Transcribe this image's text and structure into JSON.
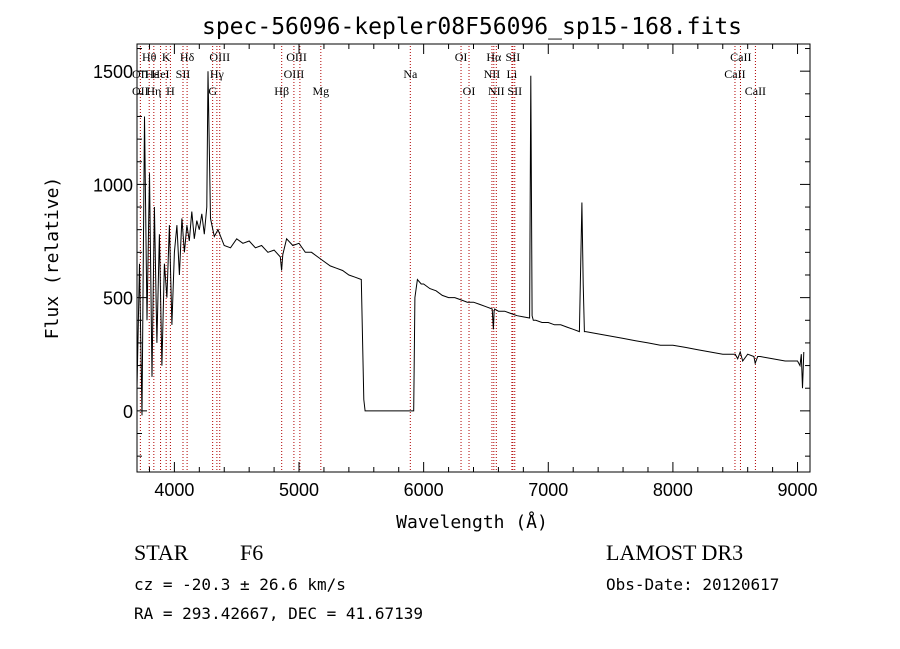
{
  "chart_data": {
    "type": "line",
    "title": "spec-56096-kepler08F56096_sp15-168.fits",
    "xlabel": "Wavelength (Å)",
    "ylabel": "Flux (relative)",
    "xlim": [
      3700,
      9100
    ],
    "ylim": [
      -270,
      1620
    ],
    "xticks": [
      4000,
      5000,
      6000,
      7000,
      8000,
      9000
    ],
    "yticks": [
      0,
      500,
      1000,
      1500
    ],
    "xtick_labels": [
      "4000",
      "5000",
      "6000",
      "7000",
      "8000",
      "9000"
    ],
    "ytick_labels": [
      "0",
      "500",
      "1000",
      "1500"
    ],
    "series": [
      {
        "name": "spectrum",
        "x": [
          3700,
          3720,
          3740,
          3760,
          3780,
          3800,
          3820,
          3840,
          3860,
          3880,
          3900,
          3920,
          3940,
          3960,
          3980,
          4000,
          4020,
          4040,
          4060,
          4080,
          4100,
          4120,
          4140,
          4160,
          4180,
          4200,
          4220,
          4240,
          4260,
          4270,
          4290,
          4320,
          4350,
          4400,
          4450,
          4500,
          4550,
          4600,
          4650,
          4700,
          4750,
          4800,
          4850,
          4860,
          4870,
          4900,
          4950,
          5000,
          5050,
          5100,
          5150,
          5200,
          5250,
          5300,
          5350,
          5400,
          5450,
          5500,
          5520,
          5530,
          5550,
          5600,
          5700,
          5800,
          5900,
          5920,
          5930,
          5950,
          5980,
          6000,
          6050,
          6100,
          6150,
          6200,
          6250,
          6300,
          6350,
          6400,
          6450,
          6500,
          6550,
          6560,
          6565,
          6570,
          6600,
          6650,
          6700,
          6750,
          6800,
          6850,
          6860,
          6870,
          6880,
          6900,
          6950,
          7000,
          7050,
          7100,
          7150,
          7200,
          7250,
          7270,
          7280,
          7290,
          7300,
          7350,
          7400,
          7500,
          7600,
          7700,
          7800,
          7900,
          8000,
          8100,
          8200,
          8300,
          8400,
          8500,
          8520,
          8540,
          8560,
          8600,
          8650,
          8660,
          8680,
          8700,
          8800,
          8900,
          9000,
          9020,
          9030,
          9040,
          9050
        ],
        "y": [
          100,
          650,
          -20,
          1300,
          400,
          1050,
          150,
          900,
          300,
          780,
          200,
          650,
          500,
          820,
          380,
          700,
          820,
          600,
          850,
          700,
          820,
          750,
          880,
          760,
          840,
          800,
          870,
          780,
          900,
          1500,
          850,
          770,
          800,
          730,
          720,
          760,
          740,
          750,
          720,
          730,
          700,
          710,
          680,
          620,
          690,
          760,
          730,
          740,
          700,
          700,
          680,
          660,
          640,
          630,
          620,
          600,
          590,
          580,
          50,
          0,
          0,
          0,
          0,
          0,
          0,
          0,
          500,
          580,
          560,
          560,
          540,
          530,
          510,
          500,
          500,
          490,
          480,
          480,
          470,
          460,
          450,
          360,
          440,
          450,
          440,
          440,
          430,
          420,
          415,
          410,
          1480,
          420,
          400,
          400,
          390,
          390,
          380,
          380,
          370,
          360,
          350,
          920,
          560,
          350,
          350,
          345,
          340,
          330,
          320,
          310,
          300,
          290,
          290,
          280,
          270,
          260,
          250,
          250,
          230,
          260,
          220,
          250,
          240,
          210,
          240,
          240,
          230,
          220,
          220,
          200,
          250,
          100,
          260
        ]
      }
    ],
    "line_labels": [
      {
        "text": "Hθ",
        "row": 1,
        "x": 3798,
        "lines": [
          3798
        ]
      },
      {
        "text": "K",
        "row": 1,
        "x": 3934,
        "lines": [
          3934
        ]
      },
      {
        "text": "Hδ",
        "row": 1,
        "x": 4102,
        "lines": [
          4102
        ]
      },
      {
        "text": "OIII",
        "row": 1,
        "x": 4364,
        "lines": [
          4364
        ]
      },
      {
        "text": "OIII",
        "row": 1,
        "x": 4980,
        "lines": [
          4959
        ]
      },
      {
        "text": "OI",
        "row": 1,
        "x": 6300,
        "lines": [
          6300
        ]
      },
      {
        "text": "Hα",
        "row": 1,
        "x": 6563,
        "lines": [
          6563
        ]
      },
      {
        "text": "SII",
        "row": 1,
        "x": 6716,
        "lines": [
          6716
        ]
      },
      {
        "text": "CaII",
        "row": 1,
        "x": 8545,
        "lines": [
          8542
        ]
      },
      {
        "text": "OII",
        "row": 2,
        "x": 3727,
        "lines": [
          3727
        ]
      },
      {
        "text": "Hε",
        "row": 2,
        "x": 3820,
        "lines": [
          3835
        ]
      },
      {
        "text": "HeI",
        "row": 2,
        "x": 3889,
        "lines": [
          3889
        ]
      },
      {
        "text": "SII",
        "row": 2,
        "x": 4069,
        "lines": [
          4069
        ]
      },
      {
        "text": "Hγ",
        "row": 2,
        "x": 4341,
        "lines": [
          4341
        ]
      },
      {
        "text": "OIII",
        "row": 2,
        "x": 4959,
        "lines": [
          5007
        ]
      },
      {
        "text": "Na",
        "row": 2,
        "x": 5893,
        "lines": [
          5893
        ]
      },
      {
        "text": "NII",
        "row": 2,
        "x": 6548,
        "lines": [
          6548
        ]
      },
      {
        "text": "Li",
        "row": 2,
        "x": 6708,
        "lines": [
          6708
        ]
      },
      {
        "text": "CaII",
        "row": 2,
        "x": 8498,
        "lines": [
          8498
        ]
      },
      {
        "text": "OII",
        "row": 3,
        "x": 3727,
        "lines": []
      },
      {
        "text": "Hη",
        "row": 3,
        "x": 3835,
        "lines": []
      },
      {
        "text": "H",
        "row": 3,
        "x": 3968,
        "lines": [
          3968
        ]
      },
      {
        "text": "G",
        "row": 3,
        "x": 4307,
        "lines": [
          4307
        ]
      },
      {
        "text": "Hβ",
        "row": 3,
        "x": 4861,
        "lines": [
          4861
        ]
      },
      {
        "text": "Mg",
        "row": 3,
        "x": 5175,
        "lines": [
          5175
        ]
      },
      {
        "text": "OI",
        "row": 3,
        "x": 6364,
        "lines": [
          6364
        ]
      },
      {
        "text": "NII",
        "row": 3,
        "x": 6583,
        "lines": [
          6583
        ]
      },
      {
        "text": "SII",
        "row": 3,
        "x": 6731,
        "lines": [
          6731
        ]
      },
      {
        "text": "CaII",
        "row": 3,
        "x": 8662,
        "lines": [
          8662
        ]
      }
    ]
  },
  "info": {
    "object_class": "STAR",
    "subclass": "F6",
    "survey": "LAMOST DR3",
    "redshift": "cz = -20.3 ± 26.6 km/s",
    "obs_date": "Obs-Date: 20120617",
    "coords": "RA = 293.42667, DEC =  41.67139"
  }
}
